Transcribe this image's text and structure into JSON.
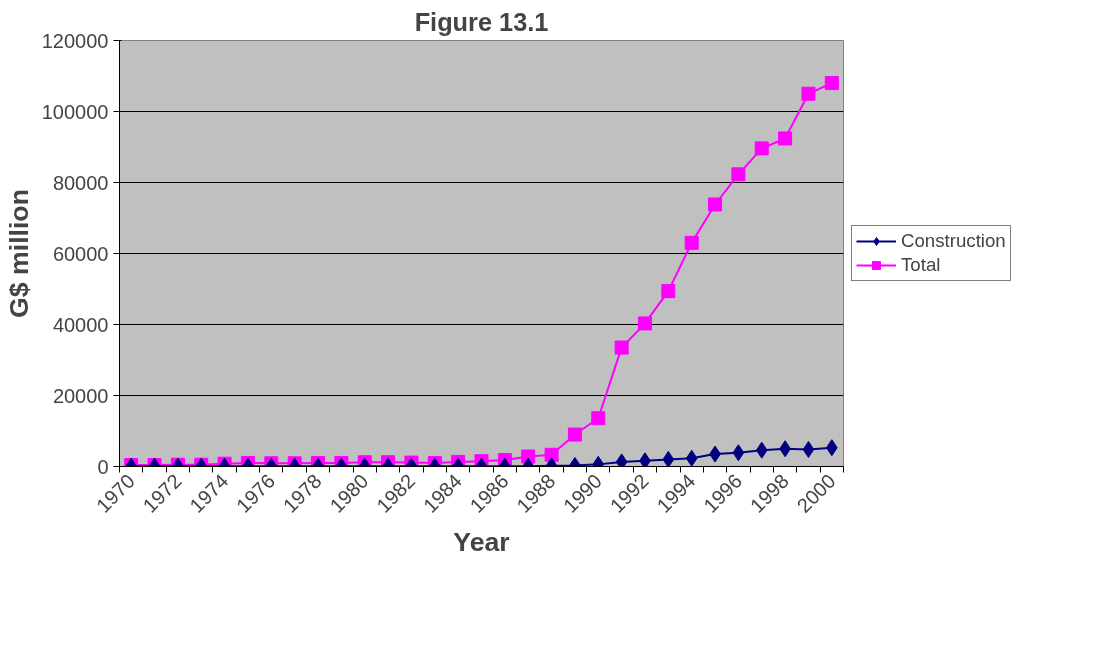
{
  "chart_data": {
    "type": "line",
    "title": "Figure 13.1",
    "xlabel": "Year",
    "ylabel": "G$ million",
    "categories": [
      "1970",
      null,
      "1972",
      null,
      "1974",
      null,
      "1976",
      null,
      "1978",
      null,
      "1980",
      null,
      "1982",
      null,
      "1984",
      null,
      "1986",
      null,
      "1988",
      null,
      "1990",
      null,
      "1992",
      null,
      "1994",
      null,
      "1996",
      null,
      "1998",
      null,
      "2000"
    ],
    "series": [
      {
        "name": "Construction",
        "color": "#000080",
        "marker": "diamond",
        "values": [
          100,
          100,
          100,
          100,
          100,
          100,
          100,
          100,
          100,
          100,
          100,
          100,
          100,
          100,
          100,
          100,
          100,
          100,
          200,
          300,
          600,
          1300,
          1600,
          2000,
          2300,
          3500,
          3900,
          4600,
          5000,
          4800,
          5300
        ]
      },
      {
        "name": "Total",
        "color": "#ff00ff",
        "marker": "square",
        "values": [
          400,
          400,
          500,
          500,
          800,
          1000,
          900,
          900,
          1000,
          1000,
          1200,
          1200,
          1100,
          1000,
          1300,
          1500,
          1800,
          2800,
          3300,
          9000,
          13600,
          33500,
          40300,
          49400,
          63000,
          73800,
          82300,
          89600,
          92400,
          105000,
          108000
        ]
      }
    ],
    "ylim": [
      0,
      120000
    ],
    "yticks": [
      0,
      20000,
      40000,
      60000,
      80000,
      100000,
      120000
    ],
    "grid": "y",
    "legend": "right",
    "line_style": "solid"
  }
}
